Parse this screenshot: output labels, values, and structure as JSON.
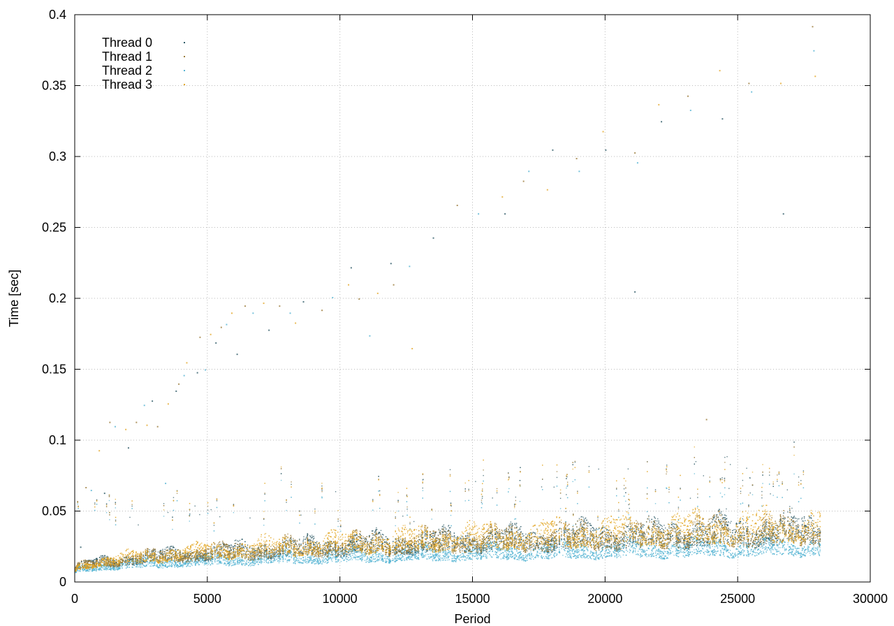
{
  "chart_data": {
    "type": "scatter",
    "xlabel": "Period",
    "ylabel": "Time [sec]",
    "xlim": [
      0,
      30000
    ],
    "ylim": [
      0,
      0.4
    ],
    "x_ticks": [
      "0",
      "5000",
      "10000",
      "15000",
      "20000",
      "25000",
      "30000"
    ],
    "y_ticks": [
      "0",
      "0.05",
      "0.1",
      "0.15",
      "0.2",
      "0.25",
      "0.3",
      "0.35",
      "0.4"
    ],
    "grid": true,
    "legend_position": "top-left",
    "x_data_range": [
      0,
      28100
    ],
    "series": [
      {
        "name": "Thread 0",
        "color": "#2e5a66",
        "band_low": [
          0.006,
          0.02
        ],
        "band_high": [
          0.01,
          0.045
        ]
      },
      {
        "name": "Thread 1",
        "color": "#9b7b3a",
        "band_low": [
          0.006,
          0.02
        ],
        "band_high": [
          0.01,
          0.045
        ]
      },
      {
        "name": "Thread 2",
        "color": "#56b4d3",
        "band_low": [
          0.005,
          0.015
        ],
        "band_high": [
          0.009,
          0.03
        ]
      },
      {
        "name": "Thread 3",
        "color": "#e3a82a",
        "band_low": [
          0.006,
          0.022
        ],
        "band_high": [
          0.01,
          0.048
        ]
      }
    ],
    "outliers": [
      [
        200,
        0.025
      ],
      [
        400,
        0.067
      ],
      [
        600,
        0.065
      ],
      [
        900,
        0.093
      ],
      [
        1100,
        0.063
      ],
      [
        1300,
        0.113
      ],
      [
        1500,
        0.11
      ],
      [
        1900,
        0.108
      ],
      [
        2000,
        0.095
      ],
      [
        2300,
        0.113
      ],
      [
        2600,
        0.125
      ],
      [
        2700,
        0.111
      ],
      [
        2900,
        0.128
      ],
      [
        3100,
        0.11
      ],
      [
        3400,
        0.07
      ],
      [
        3500,
        0.126
      ],
      [
        3800,
        0.135
      ],
      [
        3900,
        0.14
      ],
      [
        4100,
        0.146
      ],
      [
        4200,
        0.155
      ],
      [
        4600,
        0.148
      ],
      [
        4700,
        0.173
      ],
      [
        4900,
        0.15
      ],
      [
        5100,
        0.175
      ],
      [
        5300,
        0.169
      ],
      [
        5500,
        0.18
      ],
      [
        5700,
        0.182
      ],
      [
        5900,
        0.19
      ],
      [
        6100,
        0.161
      ],
      [
        6400,
        0.195
      ],
      [
        6700,
        0.19
      ],
      [
        7100,
        0.197
      ],
      [
        7300,
        0.178
      ],
      [
        7700,
        0.195
      ],
      [
        8100,
        0.19
      ],
      [
        8300,
        0.183
      ],
      [
        8600,
        0.198
      ],
      [
        9300,
        0.192
      ],
      [
        9700,
        0.201
      ],
      [
        10300,
        0.21
      ],
      [
        10400,
        0.222
      ],
      [
        10700,
        0.2
      ],
      [
        11100,
        0.174
      ],
      [
        11400,
        0.204
      ],
      [
        11900,
        0.225
      ],
      [
        12000,
        0.21
      ],
      [
        12600,
        0.223
      ],
      [
        12700,
        0.165
      ],
      [
        13500,
        0.243
      ],
      [
        14400,
        0.266
      ],
      [
        15200,
        0.26
      ],
      [
        16100,
        0.272
      ],
      [
        16200,
        0.26
      ],
      [
        16900,
        0.283
      ],
      [
        17100,
        0.29
      ],
      [
        17800,
        0.277
      ],
      [
        18000,
        0.305
      ],
      [
        18900,
        0.299
      ],
      [
        19000,
        0.29
      ],
      [
        19900,
        0.318
      ],
      [
        20000,
        0.305
      ],
      [
        21100,
        0.303
      ],
      [
        21200,
        0.296
      ],
      [
        22000,
        0.337
      ],
      [
        22100,
        0.325
      ],
      [
        23100,
        0.343
      ],
      [
        23200,
        0.333
      ],
      [
        24300,
        0.361
      ],
      [
        24400,
        0.327
      ],
      [
        25400,
        0.352
      ],
      [
        25500,
        0.346
      ],
      [
        26600,
        0.352
      ],
      [
        26700,
        0.26
      ],
      [
        27800,
        0.392
      ],
      [
        27850,
        0.375
      ],
      [
        27900,
        0.357
      ],
      [
        21100,
        0.205
      ],
      [
        23800,
        0.115
      ]
    ]
  }
}
